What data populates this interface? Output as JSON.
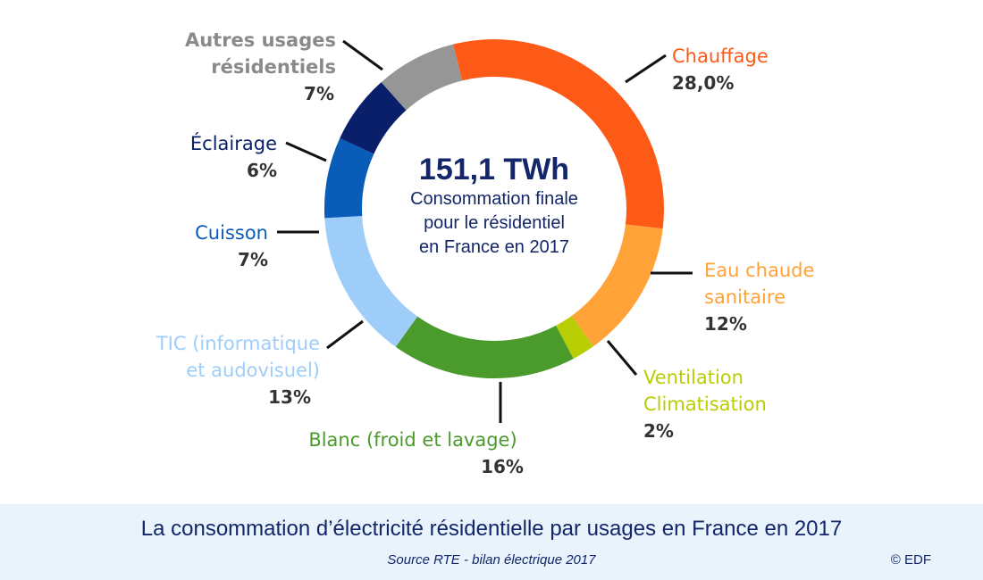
{
  "chart_data": {
    "type": "pie",
    "center_total": "151,1 TWh",
    "center_caption": [
      "Consommation finale",
      "pour le résidentiel",
      "en France en 2017"
    ],
    "slices": [
      {
        "name": "Chauffage",
        "lines": [
          "Chauffage"
        ],
        "pct_label": "28,0%",
        "value": 28.0,
        "color": "#fe5a17"
      },
      {
        "name": "Eau chaude sanitaire",
        "lines": [
          "Eau chaude",
          "sanitaire"
        ],
        "pct_label": "12%",
        "value": 12,
        "color": "#ffa237"
      },
      {
        "name": "Ventilation Climatisation",
        "lines": [
          "Ventilation",
          "Climatisation"
        ],
        "pct_label": "2%",
        "value": 2,
        "color": "#b9cd04"
      },
      {
        "name": "Blanc (froid et lavage)",
        "lines": [
          "Blanc (froid et lavage)"
        ],
        "pct_label": "16%",
        "value": 16,
        "color": "#4a9a2c"
      },
      {
        "name": "TIC (informatique et audovisuel)",
        "lines": [
          "TIC (informatique",
          "et audovisuel)"
        ],
        "pct_label": "13%",
        "value": 13,
        "color": "#9fcdf9"
      },
      {
        "name": "Cuisson",
        "lines": [
          "Cuisson"
        ],
        "pct_label": "7%",
        "value": 7,
        "color": "#0a5cb9"
      },
      {
        "name": "Éclairage",
        "lines": [
          "Éclairage"
        ],
        "pct_label": "6%",
        "value": 6,
        "color": "#0a1f6a"
      },
      {
        "name": "Autres usages résidentiels",
        "lines": [
          "Autres usages",
          "résidentiels"
        ],
        "pct_label": "7%",
        "value": 7,
        "color": "#969696"
      }
    ]
  },
  "footer": {
    "title": "La consommation d’électricité résidentielle par usages en France en 2017",
    "source": "Source RTE - bilan électrique 2017",
    "credit": "© EDF"
  }
}
